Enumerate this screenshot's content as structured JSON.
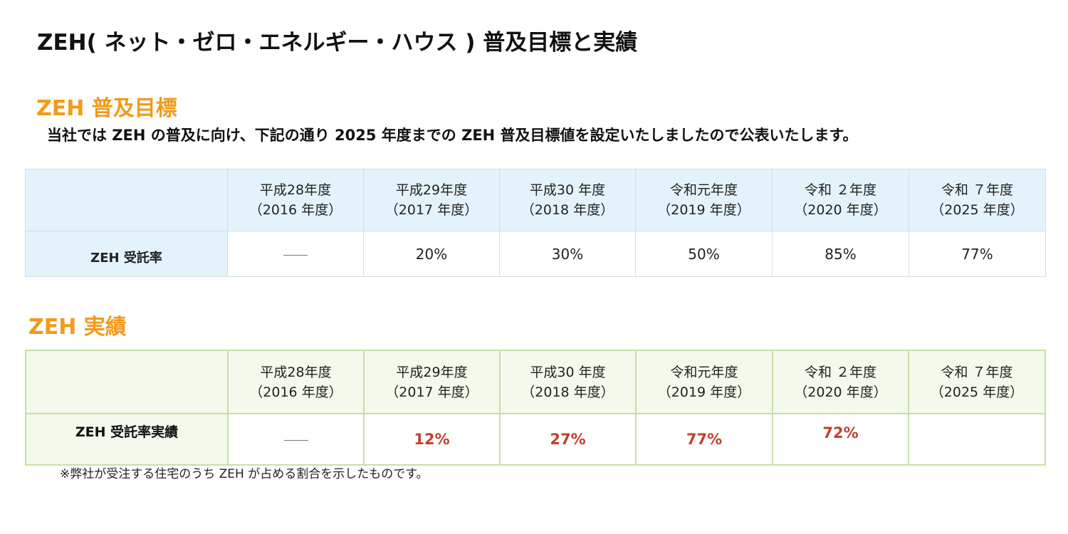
{
  "title": "ZEH( ネット・ゼロ・エネルギー・ハウス ) 普及目標と実績",
  "target": {
    "heading": "ZEH 普及目標",
    "intro": "当社では ZEH の普及に向け、下記の通り 2025 年度までの ZEH 普及目標値を設定いたしましたので公表いたします。",
    "columns": [
      {
        "line1": "平成28年度",
        "line2": "（2016 年度）"
      },
      {
        "line1": "平成29年度",
        "line2": "（2017 年度）"
      },
      {
        "line1": "平成30 年度",
        "line2": "（2018 年度）"
      },
      {
        "line1": "令和元年度",
        "line2": "（2019 年度）"
      },
      {
        "line1": "令和 ２年度",
        "line2": "（2020 年度）"
      },
      {
        "line1": "令和 ７年度",
        "line2": "（2025 年度）"
      }
    ],
    "row_label": "ZEH 受託率",
    "values": [
      "",
      "20%",
      "30%",
      "50%",
      "85%",
      "77%"
    ]
  },
  "actual": {
    "heading": "ZEH 実績",
    "columns": [
      {
        "line1": "平成28年度",
        "line2": "（2016 年度）"
      },
      {
        "line1": "平成29年度",
        "line2": "（2017 年度）"
      },
      {
        "line1": "平成30 年度",
        "line2": "（2018 年度）"
      },
      {
        "line1": "令和元年度",
        "line2": "（2019 年度）"
      },
      {
        "line1": "令和 ２年度",
        "line2": "（2020 年度）"
      },
      {
        "line1": "令和 ７年度",
        "line2": "（2025 年度）"
      }
    ],
    "row_label": "ZEH 受託率実績",
    "values": [
      "",
      "12%",
      "27%",
      "77%",
      "72%",
      ""
    ]
  },
  "footnote": "※弊社が受注する住宅のうち ZEH が占める割合を示したものです。",
  "colors": {
    "heading_orange": "#f29a1a",
    "target_header_bg": "#e4f3fb",
    "actual_border_green": "#c6dfa7",
    "actual_value_red": "#c2412b"
  }
}
